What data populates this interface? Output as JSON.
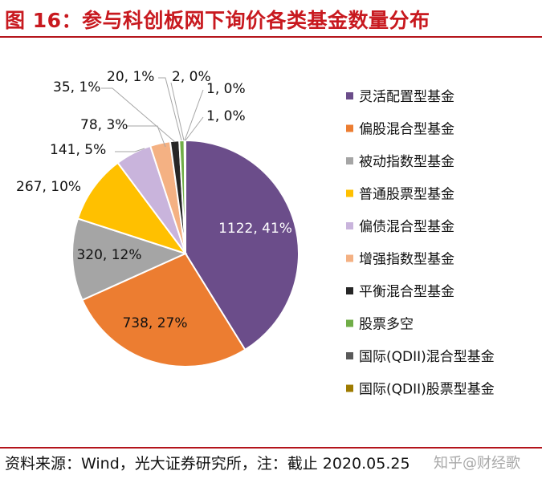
{
  "header": {
    "title": "图 16：参与科创板网下询价各类基金数量分布"
  },
  "footer": {
    "source": "资料来源：Wind，光大证券研究所，注：截止 2020.05.25",
    "watermark": "知乎@财经歌"
  },
  "chart_data": {
    "type": "pie",
    "title": "",
    "series": [
      {
        "name": "灵活配置型基金",
        "value": 1122,
        "pct": "41%",
        "label": "1122, 41%",
        "color": "#6b4d8a"
      },
      {
        "name": "偏股混合型基金",
        "value": 738,
        "pct": "27%",
        "label": "738, 27%",
        "color": "#ec7d31"
      },
      {
        "name": "被动指数型基金",
        "value": 320,
        "pct": "12%",
        "label": "320, 12%",
        "color": "#a5a5a5"
      },
      {
        "name": "普通股票型基金",
        "value": 267,
        "pct": "10%",
        "label": "267, 10%",
        "color": "#ffc000"
      },
      {
        "name": "偏债混合型基金",
        "value": 141,
        "pct": "5%",
        "label": "141, 5%",
        "color": "#c9b4dc"
      },
      {
        "name": "增强指数型基金",
        "value": 78,
        "pct": "3%",
        "label": "78, 3%",
        "color": "#f4b183"
      },
      {
        "name": "平衡混合型基金",
        "value": 35,
        "pct": "1%",
        "label": "35, 1%",
        "color": "#262626"
      },
      {
        "name": "股票多空",
        "value": 20,
        "pct": "1%",
        "label": "20, 1%",
        "color": "#70ad47"
      },
      {
        "name": "国际(QDII)混合型基金",
        "value": 2,
        "pct": "0%",
        "label": "2, 0%",
        "color": "#5a5a5a"
      },
      {
        "name": "国际(QDII)股票型基金",
        "value": 1,
        "pct": "0%",
        "label": "1, 0%",
        "color": "#9e7b00"
      },
      {
        "name": "",
        "value": 1,
        "pct": "0%",
        "label": "1, 0%",
        "color": "#8a8a8a"
      }
    ],
    "legend": {
      "position": "right"
    }
  }
}
